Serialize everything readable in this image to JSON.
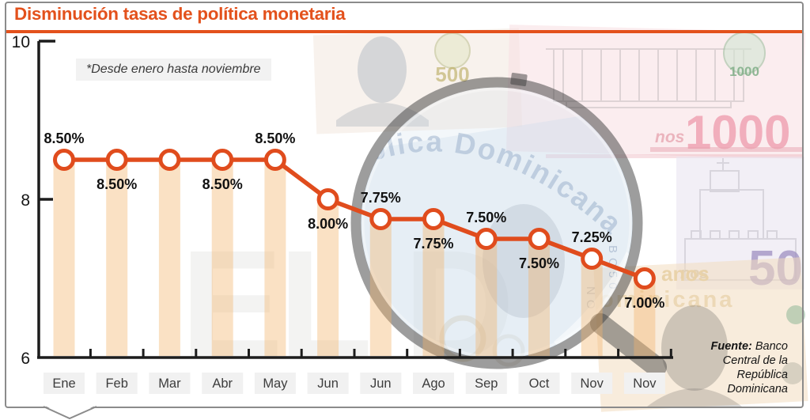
{
  "title": "Disminución tasas de política monetaria",
  "note": "*Desde enero hasta noviembre",
  "source": {
    "label": "Fuente:",
    "text": "Banco Central de la República Dominicana"
  },
  "accent_color": "#e3511c",
  "chart_data": {
    "type": "line",
    "title": "Disminución tasas de política monetaria",
    "subtitle": "*Desde enero hasta noviembre",
    "categories": [
      "Ene",
      "Feb",
      "Mar",
      "Abr",
      "May",
      "Jun",
      "Jun",
      "Ago",
      "Sep",
      "Oct",
      "Nov",
      "Nov"
    ],
    "values": [
      8.5,
      8.5,
      8.5,
      8.5,
      8.5,
      8.0,
      7.75,
      7.75,
      7.5,
      7.5,
      7.25,
      7.0
    ],
    "point_labels": [
      "8.50%",
      "8.50%",
      "",
      "8.50%",
      "8.50%",
      "8.00%",
      "7.75%",
      "7.75%",
      "7.50%",
      "7.50%",
      "7.25%",
      "7.00%"
    ],
    "label_positions": [
      "above",
      "below",
      "none",
      "below",
      "above",
      "below",
      "above",
      "below",
      "above",
      "below",
      "above",
      "below"
    ],
    "ylim": [
      6,
      10
    ],
    "yticks": [
      10,
      8,
      6
    ],
    "unit": "%",
    "grid": false,
    "legend": "none",
    "source": "Fuente: Banco Central de la República Dominicana",
    "colors": {
      "line": "#e04c1d",
      "marker_fill": "#ffffff",
      "bar": "rgba(243,181,107,0.40)",
      "axis": "#1c1c1c",
      "label": "#111111",
      "tick_chip_bg": "#f1f1f1",
      "tick_text": "#3d3d3d"
    }
  },
  "background": {
    "watermark": "EL D",
    "glass_text": "blica Dominicana",
    "emblem_500": "500",
    "emblem_1000": "1000",
    "big_1000": "1000",
    "nos_pink": "nos",
    "nos_tan": "nos",
    "big_50": "50",
    "anos_text": "anos",
    "ominicana_text": "ominicana",
    "serial_1": "BC50",
    "serial_2": "NO"
  }
}
